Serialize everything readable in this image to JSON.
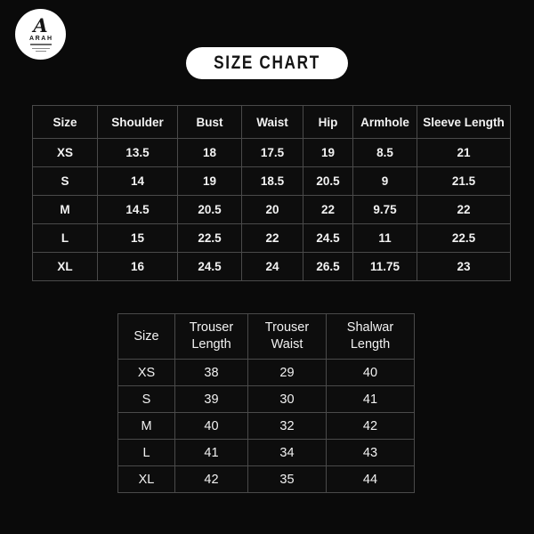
{
  "logo": {
    "monogram": "A",
    "brand": "ARAH"
  },
  "title": {
    "label": "SIZE CHART"
  },
  "size_chart": {
    "columns": [
      "Size",
      "Shoulder",
      "Bust",
      "Waist",
      "Hip",
      "Armhole",
      "Sleeve Length"
    ],
    "rows": [
      [
        "XS",
        "13.5",
        "18",
        "17.5",
        "19",
        "8.5",
        "21"
      ],
      [
        "S",
        "14",
        "19",
        "18.5",
        "20.5",
        "9",
        "21.5"
      ],
      [
        "M",
        "14.5",
        "20.5",
        "20",
        "22",
        "9.75",
        "22"
      ],
      [
        "L",
        "15",
        "22.5",
        "22",
        "24.5",
        "11",
        "22.5"
      ],
      [
        "XL",
        "16",
        "24.5",
        "24",
        "26.5",
        "11.75",
        "23"
      ]
    ]
  },
  "bottoms_chart": {
    "columns": [
      "Size",
      "Trouser Length",
      "Trouser Waist",
      "Shalwar Length"
    ],
    "rows": [
      [
        "XS",
        "38",
        "29",
        "40"
      ],
      [
        "S",
        "39",
        "30",
        "41"
      ],
      [
        "M",
        "40",
        "32",
        "42"
      ],
      [
        "L",
        "41",
        "34",
        "43"
      ],
      [
        "XL",
        "42",
        "35",
        "44"
      ]
    ]
  },
  "colors": {
    "background": "#0a0a0a",
    "table_border": "#4a4a4a",
    "text": "#f2f2f2",
    "pill_background": "#ffffff",
    "pill_text": "#141414",
    "logo_background": "#ffffff"
  }
}
